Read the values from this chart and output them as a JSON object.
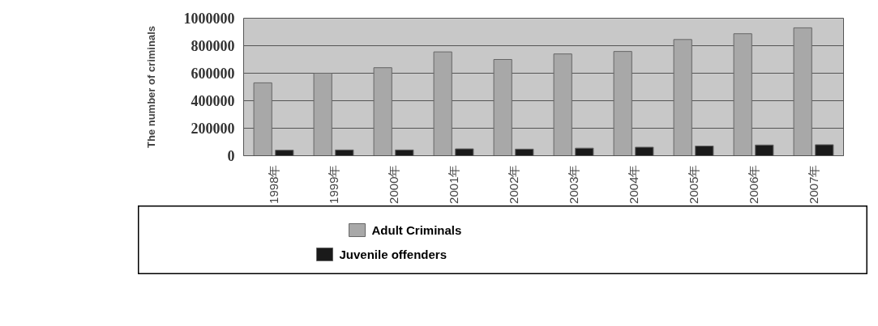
{
  "chart_data": {
    "type": "bar",
    "ylabel": "The number of criminals",
    "categories": [
      "1998年",
      "1999年",
      "2000年",
      "2001年",
      "2002年",
      "2003年",
      "2004年",
      "2005年",
      "2006年",
      "2007年"
    ],
    "series": [
      {
        "name": "Adult Criminals",
        "color": "#a8a8a8",
        "values": [
          530000,
          600000,
          640000,
          755000,
          700000,
          740000,
          758000,
          845000,
          887000,
          930000
        ]
      },
      {
        "name": "Juvenile offenders",
        "color": "#1a1a1a",
        "values": [
          40000,
          42000,
          42000,
          50000,
          48000,
          55000,
          62000,
          70000,
          78000,
          80000
        ]
      }
    ],
    "ylim": [
      0,
      1000000
    ],
    "yticks": [
      0,
      200000,
      400000,
      600000,
      800000,
      1000000
    ],
    "grid": "y",
    "legend": "bottom"
  }
}
